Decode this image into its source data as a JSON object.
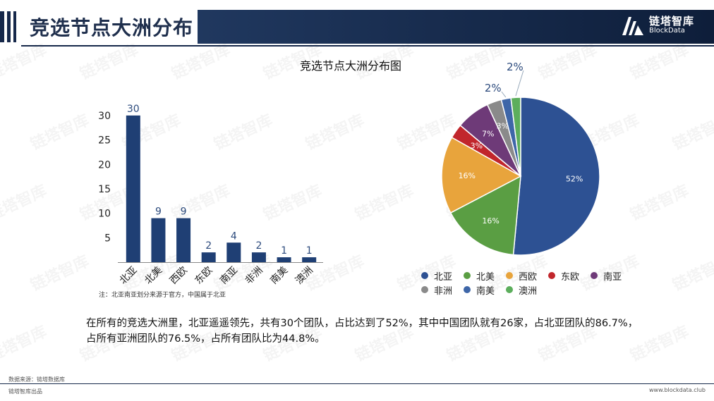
{
  "header": {
    "title": "竞选节点大洲分布",
    "logo_cn": "链塔智库",
    "logo_en": "BlockData"
  },
  "watermark_text": "链塔智库",
  "chart_data": [
    {
      "type": "bar",
      "title": "竞选节点大洲分布图",
      "categories": [
        "北亚",
        "北美",
        "西欧",
        "东欧",
        "南亚",
        "非洲",
        "南美",
        "澳洲"
      ],
      "values": [
        30,
        9,
        9,
        2,
        4,
        2,
        1,
        1
      ],
      "yticks": [
        5,
        10,
        15,
        20,
        25,
        30
      ],
      "ylim": [
        0,
        32
      ],
      "color": "#1f3f74",
      "note": "注：北亚南亚划分来源于官方，中国属于北亚"
    },
    {
      "type": "pie",
      "labels": [
        "北亚",
        "北美",
        "西欧",
        "东欧",
        "南亚",
        "非洲",
        "南美",
        "澳洲"
      ],
      "values": [
        52,
        16,
        16,
        3,
        7,
        3,
        2,
        2
      ],
      "value_labels": [
        "52%",
        "16%",
        "16%",
        "3%",
        "7%",
        "3%",
        "2%",
        "2%"
      ],
      "colors": [
        "#2d5193",
        "#5a9e43",
        "#e8a43c",
        "#c1262c",
        "#6e3a78",
        "#8a8a8a",
        "#3e66a8",
        "#5cae5c"
      ]
    }
  ],
  "summary": "在所有的竞选大洲里，北亚遥遥领先，共有30个团队，占比达到了52%，其中中国团队就有26家，占北亚团队的86.7%，占所有亚洲团队的76.5%，占所有团队比为44.8%。",
  "footer": {
    "source": "数据来源：链塔数据库",
    "left": "链塔智库出品",
    "right": "www.blockdata.club"
  },
  "colors": {
    "navy": "#16284a",
    "bar": "#1f3f74"
  }
}
